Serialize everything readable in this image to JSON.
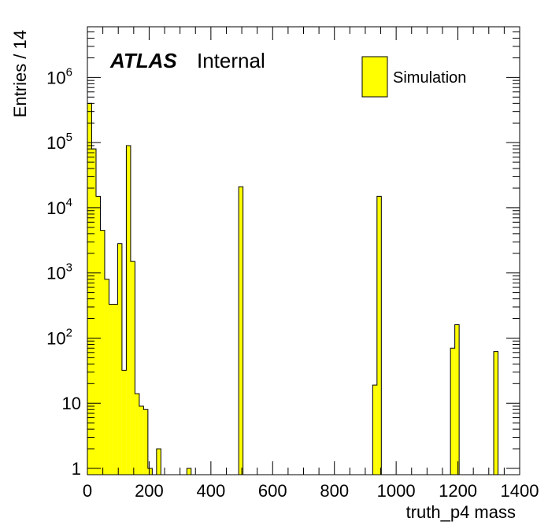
{
  "chart_data": {
    "type": "bar",
    "xlabel": "truth_p4 mass",
    "ylabel": "Entries / 14",
    "xlim": [
      0,
      1400
    ],
    "ylim": [
      0.8,
      6000000
    ],
    "yscale": "log",
    "bin_width": 14,
    "x_ticks": [
      "0",
      "200",
      "400",
      "600",
      "800",
      "1000",
      "1200",
      "1400"
    ],
    "y_tick_labels": [
      {
        "value": 1,
        "base": "1",
        "exp": ""
      },
      {
        "value": 10,
        "base": "10",
        "exp": ""
      },
      {
        "value": 100,
        "base": "10",
        "exp": "2"
      },
      {
        "value": 1000,
        "base": "10",
        "exp": "3"
      },
      {
        "value": 10000,
        "base": "10",
        "exp": "4"
      },
      {
        "value": 100000,
        "base": "10",
        "exp": "5"
      },
      {
        "value": 1000000,
        "base": "10",
        "exp": "6"
      }
    ],
    "bins": [
      {
        "x": 0,
        "y": 400000
      },
      {
        "x": 14,
        "y": 80000
      },
      {
        "x": 28,
        "y": 15000
      },
      {
        "x": 42,
        "y": 4500
      },
      {
        "x": 56,
        "y": 800
      },
      {
        "x": 70,
        "y": 330
      },
      {
        "x": 84,
        "y": 330
      },
      {
        "x": 98,
        "y": 2800
      },
      {
        "x": 112,
        "y": 32
      },
      {
        "x": 126,
        "y": 90000
      },
      {
        "x": 140,
        "y": 1500
      },
      {
        "x": 154,
        "y": 14
      },
      {
        "x": 168,
        "y": 9
      },
      {
        "x": 182,
        "y": 8
      },
      {
        "x": 196,
        "y": 1
      },
      {
        "x": 224,
        "y": 2
      },
      {
        "x": 322,
        "y": 1
      },
      {
        "x": 490,
        "y": 21000
      },
      {
        "x": 924,
        "y": 19
      },
      {
        "x": 938,
        "y": 15000
      },
      {
        "x": 1176,
        "y": 70
      },
      {
        "x": 1190,
        "y": 160
      },
      {
        "x": 1316,
        "y": 62
      }
    ],
    "series": [
      {
        "name": "Simulation",
        "color": "#ffff00"
      }
    ],
    "legend_position": "top-right",
    "fill_color": "#ffff00",
    "line_color": "#000000"
  },
  "labels": {
    "atlas": "ATLAS",
    "internal": "Internal"
  }
}
